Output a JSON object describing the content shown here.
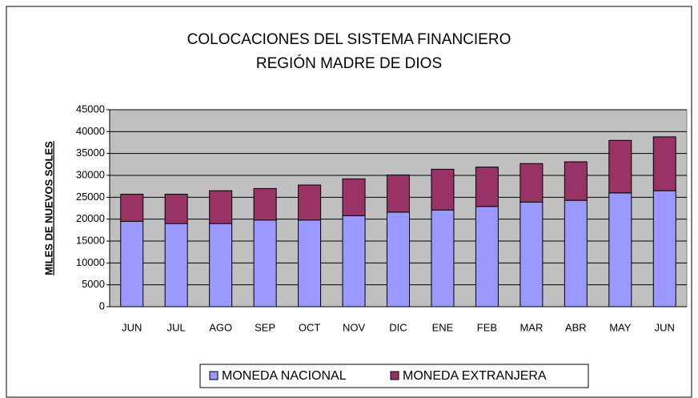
{
  "chart_data": {
    "type": "bar",
    "stacked": true,
    "title": "COLOCACIONES DEL SISTEMA FINANCIERO",
    "subtitle": "REGIÓN MADRE DE DIOS",
    "y_label": "MILES DE NUEVOS SOLES",
    "categories": [
      "JUN",
      "JUL",
      "AGO",
      "SEP",
      "OCT",
      "NOV",
      "DIC",
      "ENE",
      "FEB",
      "MAR",
      "ABR",
      "MAY",
      "JUN"
    ],
    "series": [
      {
        "name": "MONEDA NACIONAL",
        "color": "#9999ff",
        "values": [
          19500,
          19000,
          19000,
          19800,
          19800,
          20800,
          21600,
          22100,
          22900,
          23900,
          24300,
          26000,
          26500
        ]
      },
      {
        "name": "MONEDA EXTRANJERA",
        "color": "#993366",
        "values": [
          6200,
          6700,
          7500,
          7200,
          8000,
          8400,
          8500,
          9300,
          9000,
          8800,
          8800,
          12000,
          12300
        ]
      }
    ],
    "ylim": [
      0,
      45000
    ],
    "yticks": [
      0,
      5000,
      10000,
      15000,
      20000,
      25000,
      30000,
      35000,
      40000,
      45000
    ],
    "grid": true,
    "legend": "bottom"
  }
}
